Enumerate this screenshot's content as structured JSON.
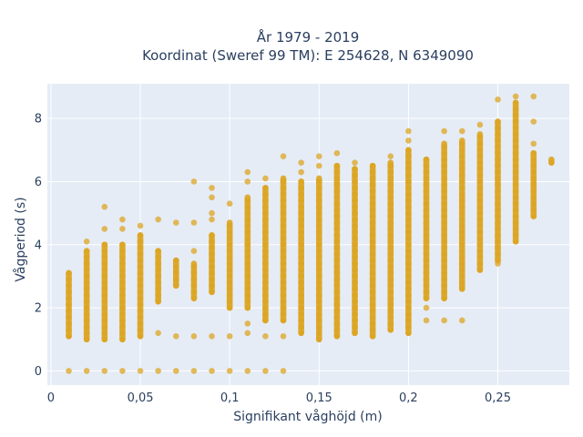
{
  "chart_data": {
    "type": "scatter",
    "title": "År 1979 - 2019",
    "subtitle": "Koordinat (Sweref 99 TM): E 254628, N 6349090",
    "xlabel": "Signifikant våghöjd (m)",
    "ylabel": "Vågperiod (s)",
    "xlim": [
      -0.002,
      0.29
    ],
    "ylim": [
      -0.45,
      9.1
    ],
    "x_ticks": [
      0,
      0.05,
      0.1,
      0.15,
      0.2,
      0.25
    ],
    "x_tick_labels": [
      "0",
      "0,05",
      "0,1",
      "0,15",
      "0,2",
      "0,25"
    ],
    "y_ticks": [
      0,
      2,
      4,
      6,
      8
    ],
    "y_tick_labels": [
      "0",
      "2",
      "4",
      "6",
      "8"
    ],
    "grid": true,
    "colors": {
      "marker": "#dca521",
      "plot_bg": "#e5ecf6",
      "grid": "#ffffff"
    },
    "columns": [
      {
        "x": 0.01,
        "min": 1.1,
        "max": 3.1,
        "zero": true
      },
      {
        "x": 0.02,
        "min": 1.0,
        "max": 3.8,
        "zero": true,
        "outliers": [
          4.1
        ]
      },
      {
        "x": 0.03,
        "min": 1.0,
        "max": 4.0,
        "zero": true,
        "outliers": [
          4.5,
          5.2
        ]
      },
      {
        "x": 0.04,
        "min": 1.0,
        "max": 4.0,
        "zero": true,
        "outliers": [
          4.5,
          4.8
        ]
      },
      {
        "x": 0.05,
        "min": 1.1,
        "max": 4.3,
        "zero": true,
        "outliers": [
          4.6
        ]
      },
      {
        "x": 0.06,
        "min": 2.2,
        "max": 3.8,
        "zero": true,
        "outliers": [
          1.2,
          4.8
        ]
      },
      {
        "x": 0.07,
        "min": 2.7,
        "max": 3.5,
        "zero": true,
        "outliers": [
          1.1,
          4.7
        ]
      },
      {
        "x": 0.08,
        "min": 2.3,
        "max": 3.4,
        "zero": true,
        "outliers": [
          1.1,
          3.8,
          4.7,
          6.0
        ]
      },
      {
        "x": 0.09,
        "min": 2.5,
        "max": 4.3,
        "zero": true,
        "outliers": [
          1.1,
          4.8,
          5.0,
          5.5,
          5.8
        ]
      },
      {
        "x": 0.1,
        "min": 2.0,
        "max": 4.7,
        "zero": true,
        "outliers": [
          1.1,
          5.3
        ]
      },
      {
        "x": 0.11,
        "min": 2.0,
        "max": 5.5,
        "zero": true,
        "outliers": [
          1.2,
          1.5,
          6.0,
          6.3
        ]
      },
      {
        "x": 0.12,
        "min": 1.6,
        "max": 5.8,
        "zero": true,
        "outliers": [
          1.1,
          6.1
        ]
      },
      {
        "x": 0.13,
        "min": 1.6,
        "max": 6.1,
        "zero": true,
        "outliers": [
          1.1,
          6.8
        ]
      },
      {
        "x": 0.14,
        "min": 1.2,
        "max": 6.0,
        "outliers": [
          6.3,
          6.6
        ]
      },
      {
        "x": 0.15,
        "min": 1.0,
        "max": 6.1,
        "outliers": [
          6.5,
          6.8
        ]
      },
      {
        "x": 0.16,
        "min": 1.1,
        "max": 6.5,
        "outliers": [
          6.9
        ]
      },
      {
        "x": 0.17,
        "min": 1.2,
        "max": 6.4,
        "outliers": [
          6.6
        ]
      },
      {
        "x": 0.18,
        "min": 1.1,
        "max": 6.5
      },
      {
        "x": 0.19,
        "min": 1.3,
        "max": 6.6,
        "outliers": [
          1.9,
          6.8
        ]
      },
      {
        "x": 0.2,
        "min": 1.2,
        "max": 7.0,
        "outliers": [
          7.3,
          7.6
        ]
      },
      {
        "x": 0.21,
        "min": 2.3,
        "max": 6.7,
        "outliers": [
          1.6,
          2.0
        ]
      },
      {
        "x": 0.22,
        "min": 2.3,
        "max": 7.2,
        "outliers": [
          1.6,
          7.6
        ]
      },
      {
        "x": 0.23,
        "min": 2.6,
        "max": 7.3,
        "outliers": [
          1.6,
          7.6
        ]
      },
      {
        "x": 0.24,
        "min": 3.2,
        "max": 7.5,
        "outliers": [
          7.8
        ]
      },
      {
        "x": 0.25,
        "min": 3.5,
        "max": 7.9,
        "outliers": [
          3.4,
          8.6
        ]
      },
      {
        "x": 0.26,
        "min": 4.1,
        "max": 8.5,
        "outliers": [
          8.7
        ]
      },
      {
        "x": 0.27,
        "min": 4.9,
        "max": 6.9,
        "outliers": [
          7.2,
          7.9,
          8.7
        ]
      },
      {
        "x": 0.28,
        "min": 6.6,
        "max": 6.7
      }
    ]
  }
}
